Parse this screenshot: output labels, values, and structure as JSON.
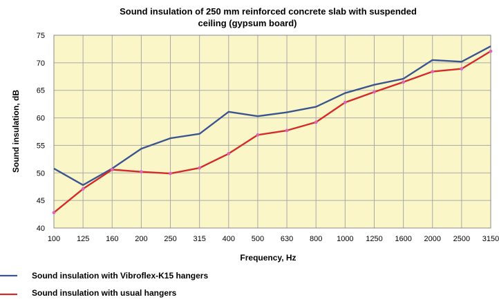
{
  "chart_data": {
    "type": "line",
    "title_lines": [
      "Sound insulation of 250 mm reinforced concrete slab with suspended",
      "ceiling (gypsum board)"
    ],
    "xlabel": "Frequency, Hz",
    "ylabel": "Sound insulation, dB",
    "categories": [
      "100",
      "125",
      "160",
      "200",
      "250",
      "315",
      "400",
      "500",
      "630",
      "800",
      "1000",
      "1250",
      "1600",
      "2000",
      "2500",
      "3150"
    ],
    "ylim": [
      40,
      75
    ],
    "yticks": [
      40,
      45,
      50,
      55,
      60,
      65,
      70,
      75
    ],
    "grid": true,
    "legend_position": "bottom-left",
    "series": [
      {
        "name": "Sound insulation with Vibroflex-K15 hangers",
        "color": "#3a5590",
        "markers": false,
        "values": [
          50.8,
          47.8,
          50.8,
          54.4,
          56.3,
          57.1,
          61.1,
          60.3,
          61.0,
          62.0,
          64.5,
          66.0,
          67.1,
          70.5,
          70.2,
          73.0
        ]
      },
      {
        "name": "Sound insulation with usual hangers",
        "color": "#d42a2a",
        "markers": true,
        "marker_color": "#d966b8",
        "values": [
          42.8,
          47.1,
          50.6,
          50.2,
          49.9,
          50.9,
          53.5,
          56.9,
          57.7,
          59.2,
          62.8,
          64.7,
          66.5,
          68.4,
          68.9,
          72.1
        ]
      }
    ],
    "plot_background": "#fbf6c7"
  }
}
